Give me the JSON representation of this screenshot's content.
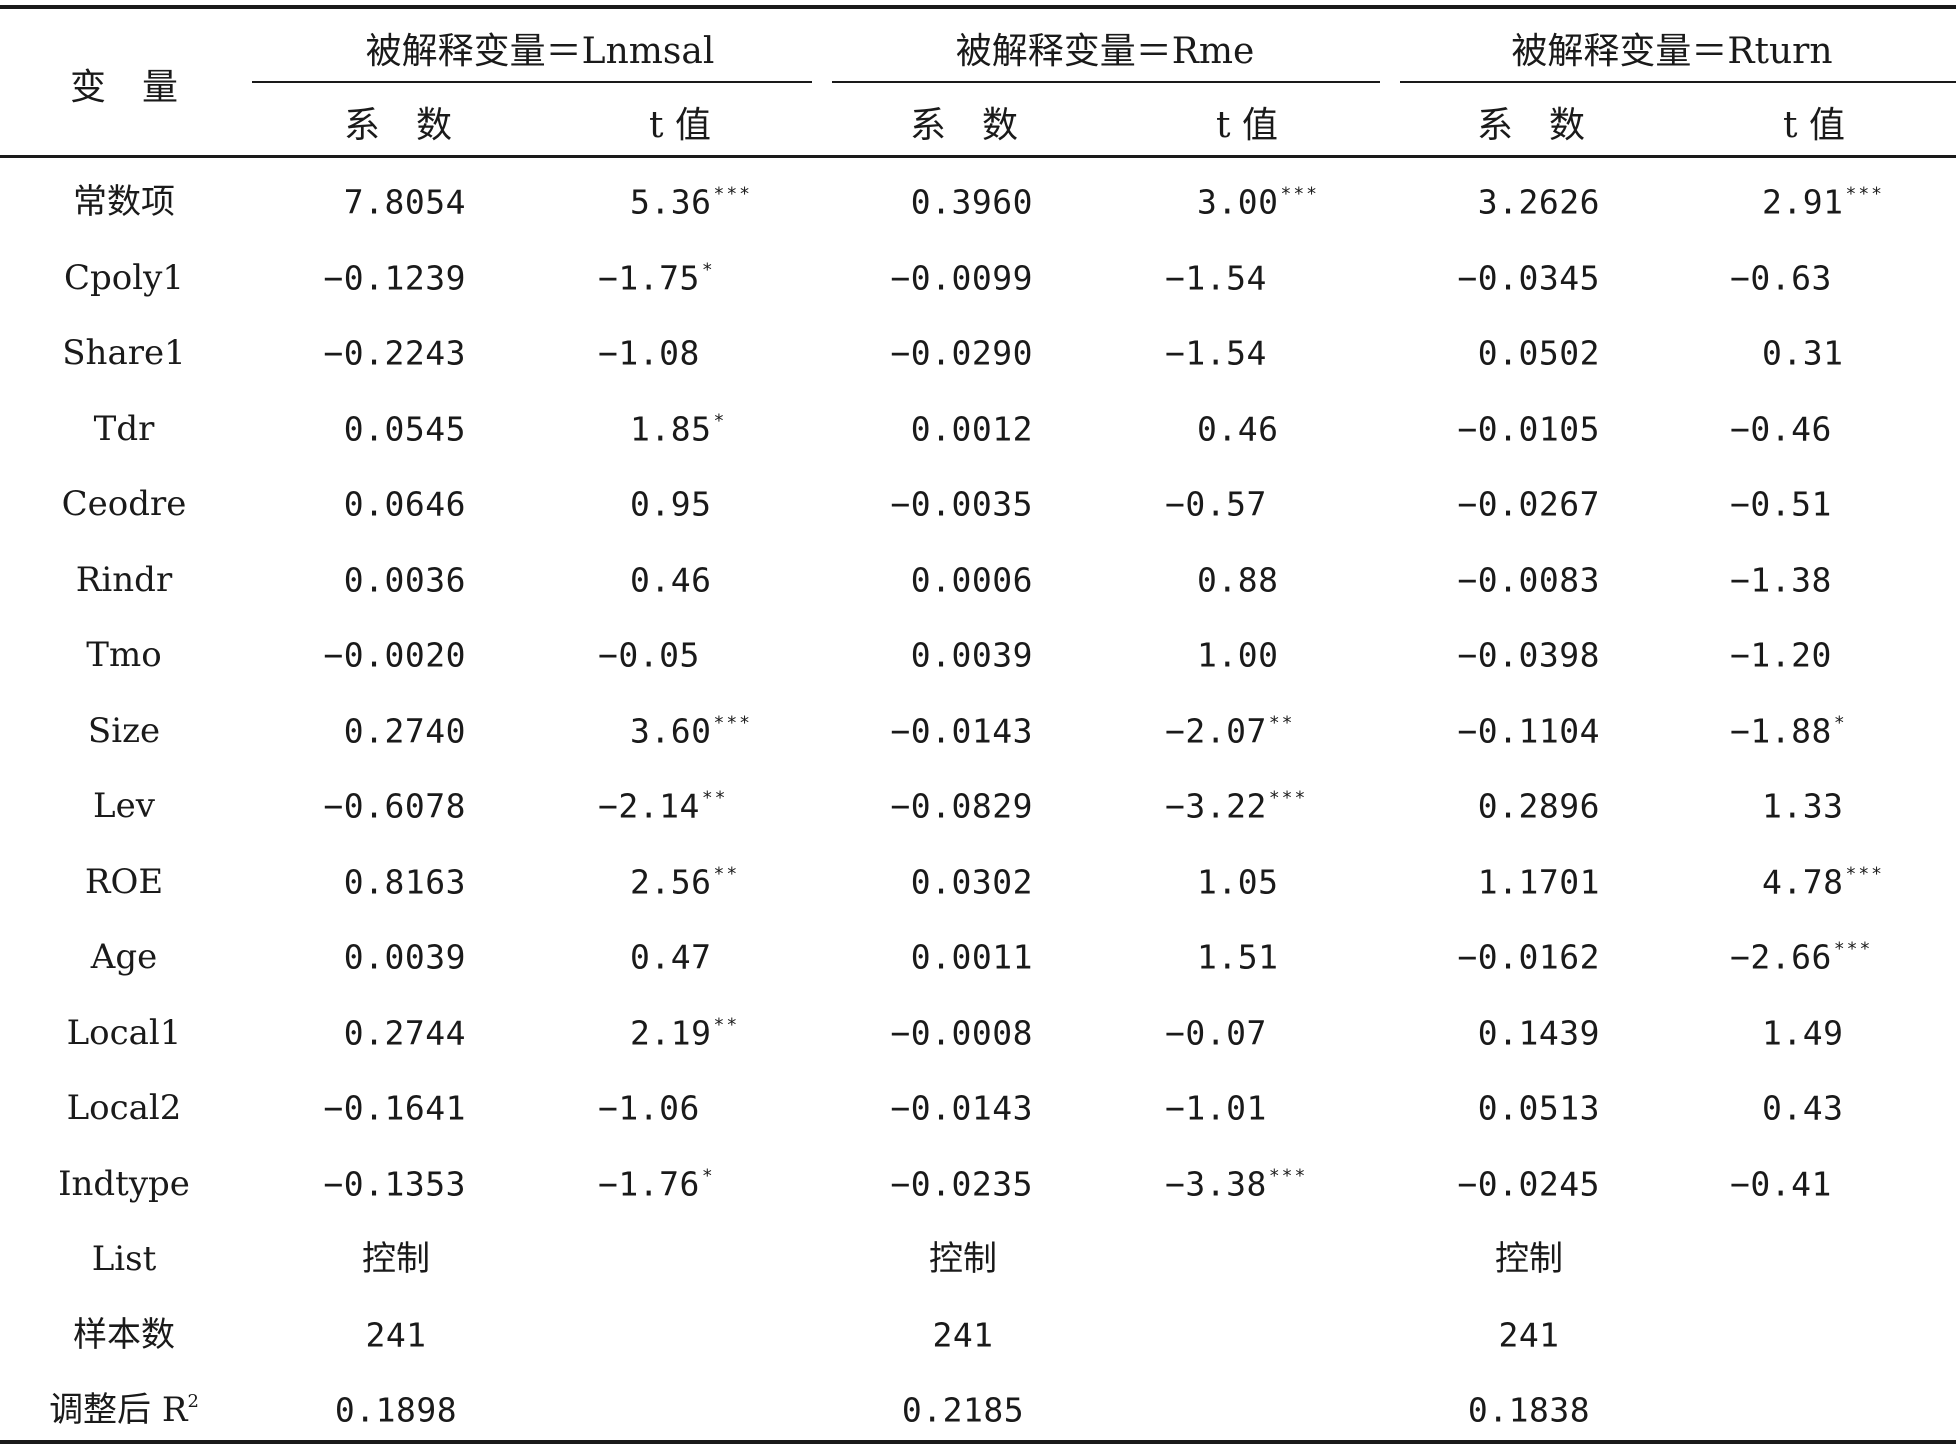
{
  "header": {
    "variable_label": "变　量",
    "groups": [
      {
        "title": "被解释变量＝Lnmsal",
        "coef_label": "系　数",
        "t_label": "t 值"
      },
      {
        "title": "被解释变量＝Rme",
        "coef_label": "系　数",
        "t_label": "t 值"
      },
      {
        "title": "被解释变量＝Rturn",
        "coef_label": "系　数",
        "t_label": "t 值"
      }
    ]
  },
  "rows": [
    {
      "name": "常数项",
      "cells": [
        {
          "coef": "7.8054",
          "t": "5.36",
          "sig": "***"
        },
        {
          "coef": "0.3960",
          "t": "3.00",
          "sig": "***"
        },
        {
          "coef": "3.2626",
          "t": "2.91",
          "sig": "***"
        }
      ]
    },
    {
      "name": "Cpoly1",
      "cells": [
        {
          "coef": "−0.1239",
          "t": "−1.75",
          "sig": "*"
        },
        {
          "coef": "−0.0099",
          "t": "−1.54",
          "sig": ""
        },
        {
          "coef": "−0.0345",
          "t": "−0.63",
          "sig": ""
        }
      ]
    },
    {
      "name": "Share1",
      "cells": [
        {
          "coef": "−0.2243",
          "t": "−1.08",
          "sig": ""
        },
        {
          "coef": "−0.0290",
          "t": "−1.54",
          "sig": ""
        },
        {
          "coef": "0.0502",
          "t": "0.31",
          "sig": ""
        }
      ]
    },
    {
      "name": "Tdr",
      "cells": [
        {
          "coef": "0.0545",
          "t": "1.85",
          "sig": "*"
        },
        {
          "coef": "0.0012",
          "t": "0.46",
          "sig": ""
        },
        {
          "coef": "−0.0105",
          "t": "−0.46",
          "sig": ""
        }
      ]
    },
    {
      "name": "Ceodre",
      "cells": [
        {
          "coef": "0.0646",
          "t": "0.95",
          "sig": ""
        },
        {
          "coef": "−0.0035",
          "t": "−0.57",
          "sig": ""
        },
        {
          "coef": "−0.0267",
          "t": "−0.51",
          "sig": ""
        }
      ]
    },
    {
      "name": "Rindr",
      "cells": [
        {
          "coef": "0.0036",
          "t": "0.46",
          "sig": ""
        },
        {
          "coef": "0.0006",
          "t": "0.88",
          "sig": ""
        },
        {
          "coef": "−0.0083",
          "t": "−1.38",
          "sig": ""
        }
      ]
    },
    {
      "name": "Tmo",
      "cells": [
        {
          "coef": "−0.0020",
          "t": "−0.05",
          "sig": ""
        },
        {
          "coef": "0.0039",
          "t": "1.00",
          "sig": ""
        },
        {
          "coef": "−0.0398",
          "t": "−1.20",
          "sig": ""
        }
      ]
    },
    {
      "name": "Size",
      "cells": [
        {
          "coef": "0.2740",
          "t": "3.60",
          "sig": "***"
        },
        {
          "coef": "−0.0143",
          "t": "−2.07",
          "sig": "**"
        },
        {
          "coef": "−0.1104",
          "t": "−1.88",
          "sig": "*"
        }
      ]
    },
    {
      "name": "Lev",
      "cells": [
        {
          "coef": "−0.6078",
          "t": "−2.14",
          "sig": "**"
        },
        {
          "coef": "−0.0829",
          "t": "−3.22",
          "sig": "***"
        },
        {
          "coef": "0.2896",
          "t": "1.33",
          "sig": ""
        }
      ]
    },
    {
      "name": "ROE",
      "cells": [
        {
          "coef": "0.8163",
          "t": "2.56",
          "sig": "**"
        },
        {
          "coef": "0.0302",
          "t": "1.05",
          "sig": ""
        },
        {
          "coef": "1.1701",
          "t": "4.78",
          "sig": "***"
        }
      ]
    },
    {
      "name": "Age",
      "cells": [
        {
          "coef": "0.0039",
          "t": "0.47",
          "sig": ""
        },
        {
          "coef": "0.0011",
          "t": "1.51",
          "sig": ""
        },
        {
          "coef": "−0.0162",
          "t": "−2.66",
          "sig": "***"
        }
      ]
    },
    {
      "name": "Local1",
      "cells": [
        {
          "coef": "0.2744",
          "t": "2.19",
          "sig": "**"
        },
        {
          "coef": "−0.0008",
          "t": "−0.07",
          "sig": ""
        },
        {
          "coef": "0.1439",
          "t": "1.49",
          "sig": ""
        }
      ]
    },
    {
      "name": "Local2",
      "cells": [
        {
          "coef": "−0.1641",
          "t": "−1.06",
          "sig": ""
        },
        {
          "coef": "−0.0143",
          "t": "−1.01",
          "sig": ""
        },
        {
          "coef": "0.0513",
          "t": "0.43",
          "sig": ""
        }
      ]
    },
    {
      "name": "Indtype",
      "cells": [
        {
          "coef": "−0.1353",
          "t": "−1.76",
          "sig": "*"
        },
        {
          "coef": "−0.0235",
          "t": "−3.38",
          "sig": "***"
        },
        {
          "coef": "−0.0245",
          "t": "−0.41",
          "sig": ""
        }
      ]
    },
    {
      "name": "List",
      "cells": [
        {
          "coef": "控制",
          "t": "",
          "sig": ""
        },
        {
          "coef": "控制",
          "t": "",
          "sig": ""
        },
        {
          "coef": "控制",
          "t": "",
          "sig": ""
        }
      ]
    },
    {
      "name": "样本数",
      "cells": [
        {
          "coef": "241",
          "t": "",
          "sig": ""
        },
        {
          "coef": "241",
          "t": "",
          "sig": ""
        },
        {
          "coef": "241",
          "t": "",
          "sig": ""
        }
      ]
    },
    {
      "name": "调整后 R",
      "sup": "2",
      "cells": [
        {
          "coef": "0.1898",
          "t": "",
          "sig": ""
        },
        {
          "coef": "0.2185",
          "t": "",
          "sig": ""
        },
        {
          "coef": "0.1838",
          "t": "",
          "sig": ""
        }
      ]
    }
  ]
}
